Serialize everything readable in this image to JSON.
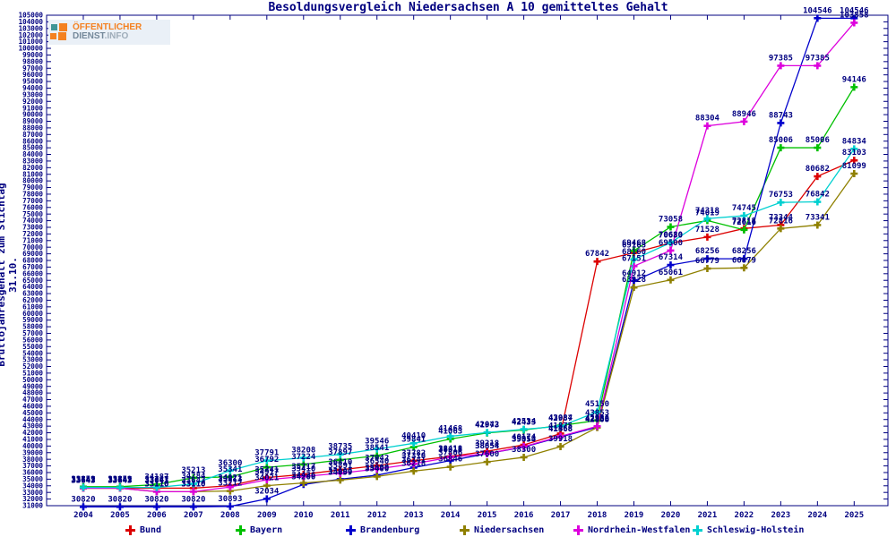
{
  "logo": {
    "line1": "ÖFFENTLICHER",
    "line2a": "DIENST",
    "line2b": ".INFO"
  },
  "chart_data": {
    "type": "line",
    "title": "Besoldungsvergleich Niedersachsen A 10 gemitteltes Gehalt",
    "ylabel": "Bruttojahresgehalt zum Stichtag 31.10.",
    "xlabel": "",
    "x": [
      2004,
      2005,
      2006,
      2007,
      2008,
      2009,
      2010,
      2011,
      2012,
      2013,
      2014,
      2015,
      2016,
      2017,
      2018,
      2019,
      2020,
      2021,
      2022,
      2023,
      2024,
      2025
    ],
    "ylim": [
      31000,
      105000
    ],
    "ystep": 1000,
    "grid": false,
    "legend_position": "bottom",
    "axis_color": "#000080",
    "point_labels": true,
    "series": [
      {
        "name": "Bund",
        "color": "#dc0000",
        "values": [
          33643,
          33643,
          33643,
          33643,
          34021,
          35241,
          35717,
          36410,
          37042,
          37782,
          38418,
          39218,
          40174,
          41875,
          67842,
          69163,
          70630,
          71528,
          72818,
          73344,
          80682,
          83103
        ]
      },
      {
        "name": "Bayern",
        "color": "#00c000",
        "values": [
          33859,
          33859,
          34187,
          35213,
          35341,
          36792,
          37224,
          37897,
          38541,
          39841,
          41063,
          41973,
          42433,
          43084,
          43853,
          69468,
          73058,
          74019,
          72616,
          85006,
          85006,
          94146
        ]
      },
      {
        "name": "Brandenburg",
        "color": "#0000cc",
        "values": [
          30820,
          30820,
          30820,
          30820,
          30893,
          32034,
          34200,
          35000,
          35600,
          36741,
          37806,
          38854,
          39854,
          41368,
          42853,
          64912,
          67314,
          68256,
          68256,
          88743,
          104546,
          104546
        ]
      },
      {
        "name": "Niedersachsen",
        "color": "#8f8000",
        "values": [
          33643,
          33643,
          33110,
          33110,
          33212,
          34021,
          34426,
          34859,
          35400,
          36218,
          36846,
          37600,
          38300,
          39918,
          42806,
          63928,
          65061,
          66779,
          66879,
          72816,
          73341,
          81099
        ]
      },
      {
        "name": "Nordrhein-Westfalen",
        "color": "#dd00dd",
        "values": [
          33643,
          33643,
          33110,
          33110,
          33813,
          34917,
          35410,
          35891,
          36540,
          37318,
          38318,
          38854,
          39913,
          41468,
          42986,
          67151,
          69500,
          88304,
          88946,
          97385,
          97385,
          103858
        ]
      },
      {
        "name": "Schleswig-Holstein",
        "color": "#00d0d0",
        "values": [
          33747,
          33747,
          33747,
          34284,
          36300,
          37791,
          38208,
          38735,
          39546,
          40410,
          41468,
          42042,
          42534,
          42987,
          45150,
          68160,
          70680,
          74318,
          74745,
          76753,
          76842,
          84834
        ]
      }
    ]
  }
}
